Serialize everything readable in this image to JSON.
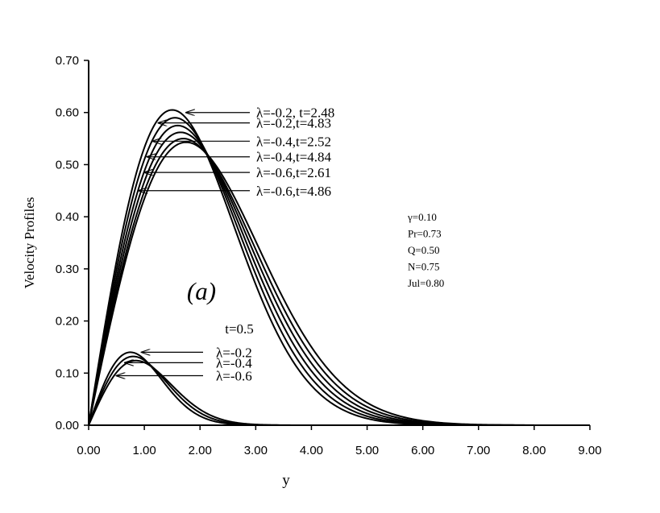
{
  "chart_data": {
    "type": "line",
    "xlabel": "y",
    "ylabel": "Velocity Profiles",
    "xlim": [
      0,
      9
    ],
    "ylim": [
      0,
      0.7
    ],
    "xticks": [
      "0.00",
      "1.00",
      "2.00",
      "3.00",
      "4.00",
      "5.00",
      "6.00",
      "7.00",
      "8.00",
      "9.00"
    ],
    "yticks": [
      "0.00",
      "0.10",
      "0.20",
      "0.30",
      "0.40",
      "0.50",
      "0.60",
      "0.70"
    ],
    "panel_label": "(a)",
    "parameters": [
      "γ=0.10",
      "Pr=0.73",
      "Q=0.50",
      "N=0.75",
      "Jul=0.80"
    ],
    "group_label": "t=0.5",
    "series": [
      {
        "name": "λ=-0.2, t=2.48",
        "peak_x": 1.5,
        "peak_y": 0.605,
        "end_x": 8.0,
        "arrow_tip": [
          1.75,
          0.6
        ]
      },
      {
        "name": "λ=-0.2,t=4.83",
        "peak_x": 1.55,
        "peak_y": 0.59,
        "end_x": 8.0,
        "arrow_tip": [
          1.25,
          0.58
        ]
      },
      {
        "name": "λ=-0.4,t=2.52",
        "peak_x": 1.6,
        "peak_y": 0.575,
        "end_x": 8.0,
        "arrow_tip": [
          1.15,
          0.545
        ]
      },
      {
        "name": "λ=-0.4,t=4.84",
        "peak_x": 1.65,
        "peak_y": 0.562,
        "end_x": 8.0,
        "arrow_tip": [
          1.05,
          0.515
        ]
      },
      {
        "name": "λ=-0.6,t=2.61",
        "peak_x": 1.7,
        "peak_y": 0.55,
        "end_x": 8.0,
        "arrow_tip": [
          1.0,
          0.485
        ]
      },
      {
        "name": "λ=-0.6,t=4.86",
        "peak_x": 1.75,
        "peak_y": 0.543,
        "end_x": 8.0,
        "arrow_tip": [
          0.9,
          0.45
        ]
      },
      {
        "name": "λ=-0.2",
        "peak_x": 0.75,
        "peak_y": 0.14,
        "end_x": 4.0,
        "arrow_tip": [
          0.95,
          0.14
        ]
      },
      {
        "name": "λ=-0.4",
        "peak_x": 0.8,
        "peak_y": 0.132,
        "end_x": 4.0,
        "arrow_tip": [
          0.65,
          0.12
        ]
      },
      {
        "name": "λ=-0.6",
        "peak_x": 0.85,
        "peak_y": 0.124,
        "end_x": 4.0,
        "arrow_tip": [
          0.5,
          0.095
        ]
      }
    ]
  }
}
